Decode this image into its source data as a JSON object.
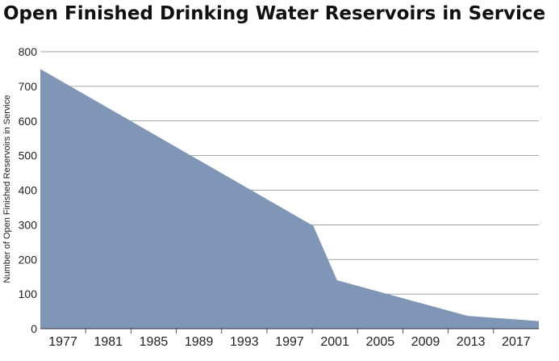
{
  "chart_data": {
    "type": "area",
    "title": "Open Finished Drinking Water Reservoirs in Service",
    "xlabel": "",
    "ylabel": "Number of Open Finished Reservoirs in Service",
    "x": [
      1975,
      1998,
      2000,
      2011,
      2017
    ],
    "values": [
      750,
      297,
      140,
      37,
      22
    ],
    "xticks": [
      "1977",
      "1981",
      "1985",
      "1989",
      "1993",
      "1997",
      "2001",
      "2005",
      "2009",
      "2013",
      "2017"
    ],
    "xlim": [
      1975,
      2017
    ],
    "ylim": [
      0,
      800
    ],
    "yticks": [
      "0",
      "100",
      "200",
      "300",
      "400",
      "500",
      "600",
      "700",
      "800"
    ],
    "grid": true,
    "colors": {
      "area": "#7f96b7",
      "grid": "#888888",
      "axis": "#333333"
    }
  }
}
